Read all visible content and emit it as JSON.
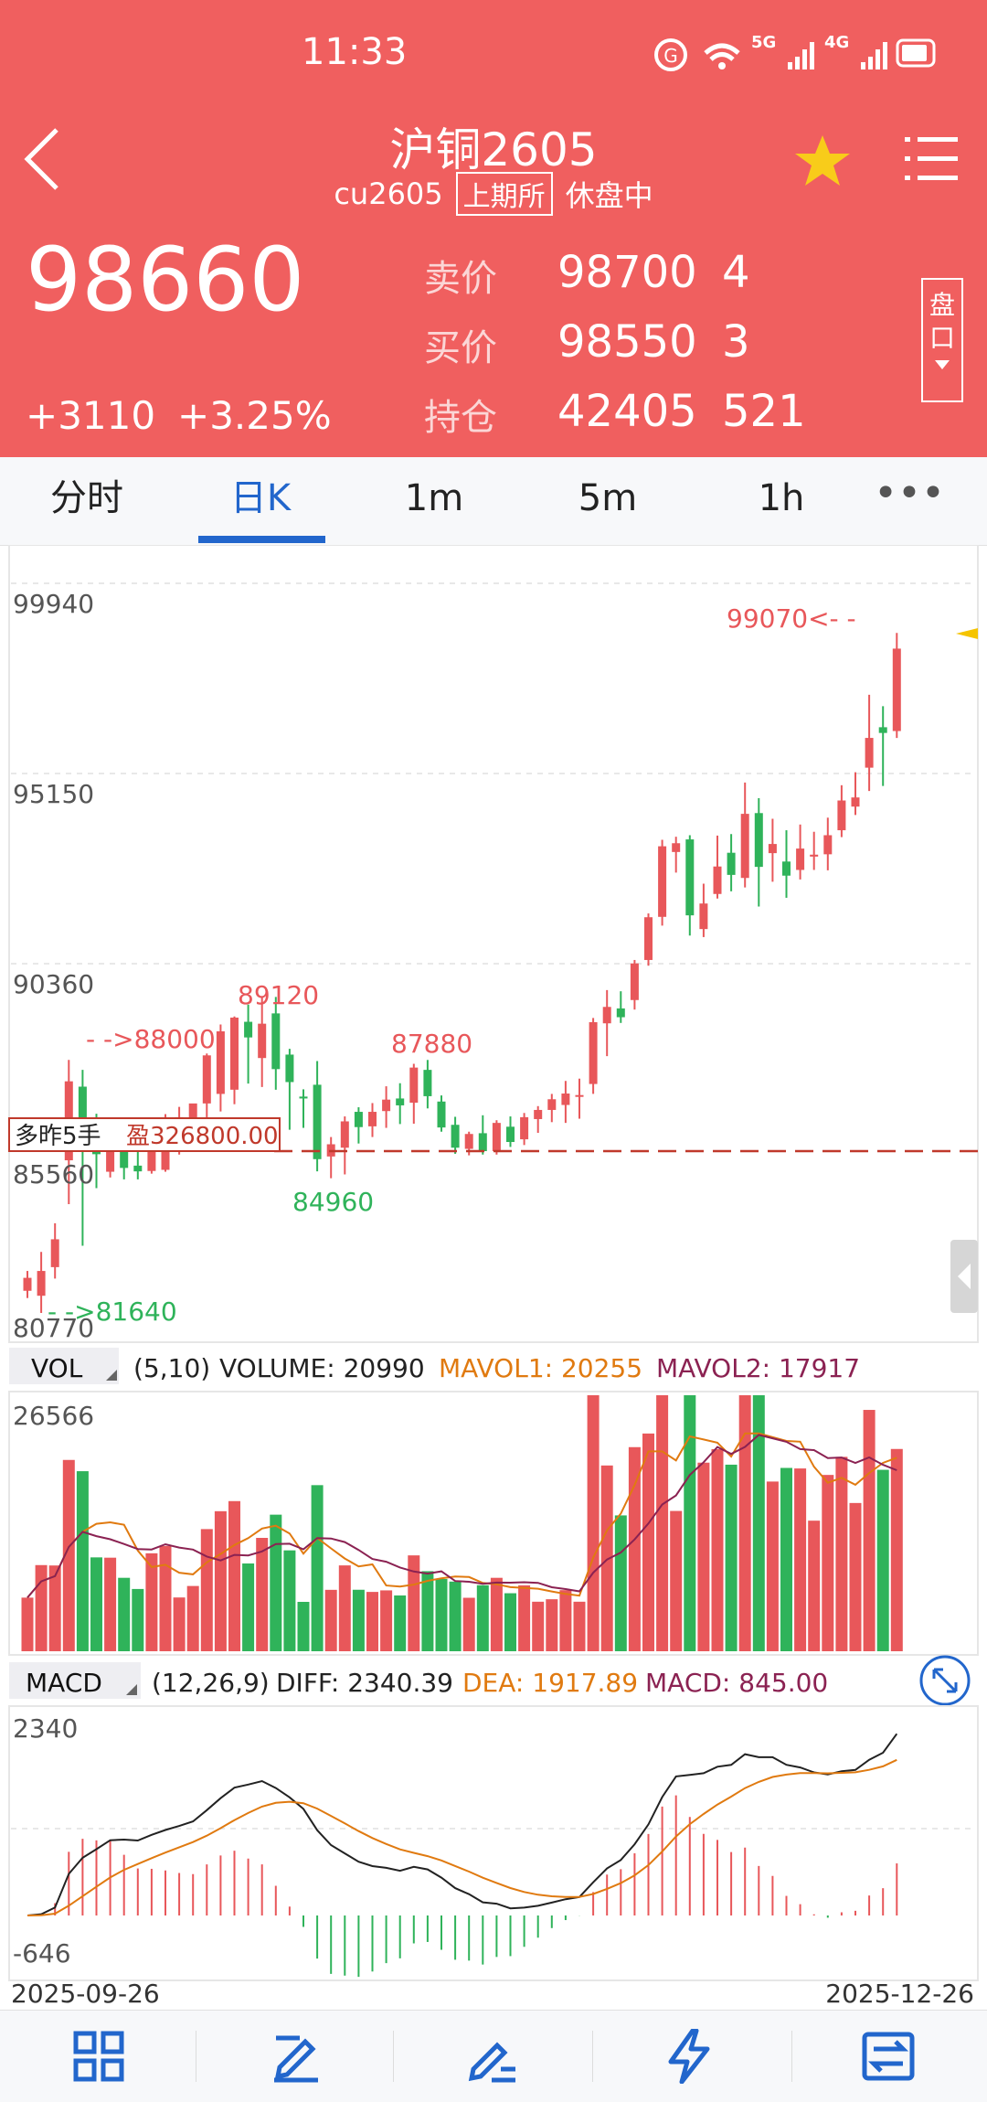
{
  "status_bar": {
    "time": "11:33",
    "net1": "5G",
    "net2": "4G"
  },
  "header": {
    "title": "沪铜2605",
    "code": "cu2605",
    "exchange": "上期所",
    "status": "休盘中",
    "price": "98660",
    "change": "+3110",
    "change_pct": "+3.25%",
    "quote_rows": [
      {
        "label": "卖价",
        "value": "98700",
        "qty": "4"
      },
      {
        "label": "买价",
        "value": "98550",
        "qty": "3"
      },
      {
        "label": "持仓",
        "value": "42405",
        "qty": "521"
      }
    ],
    "panel_button": "盘口"
  },
  "tabs": [
    "分时",
    "日K",
    "1m",
    "5m",
    "1h"
  ],
  "active_tab": 1,
  "main_chart": {
    "y_ticks": [
      "99940",
      "95150",
      "90360",
      "85560",
      "80770"
    ],
    "annotations": {
      "high_label": "99070<- -",
      "marker_88000": "- ->88000",
      "label_89120": "89120",
      "label_87880": "87880",
      "label_84960": "84960",
      "low_label": "- ->81640"
    },
    "position_tag": {
      "side": "多昨5手",
      "profit": "盈326800.00"
    }
  },
  "volume_panel": {
    "label": "VOL",
    "params": "(5,10)",
    "volume": "VOLUME: 20990",
    "mavol1": "MAVOL1: 20255",
    "mavol2": "MAVOL2: 17917",
    "y_max": "26566"
  },
  "macd_panel": {
    "label": "MACD",
    "params": "(12,26,9)",
    "diff": "DIFF: 2340.39",
    "dea": "DEA: 1917.89",
    "macd": "MACD: 845.00",
    "y_top": "2340",
    "y_bottom": "-646"
  },
  "dates": {
    "start": "2025-09-26",
    "end": "2025-12-26"
  },
  "colors": {
    "up": "#e8575a",
    "down": "#2fb35a",
    "header": "#f05f5f",
    "accent": "#2266cc",
    "orange": "#e07a10",
    "purple": "#8b2252"
  },
  "chart_data": {
    "type": "candlestick",
    "x_range": [
      "2025-09-26",
      "2025-12-26"
    ],
    "ylim": [
      80770,
      99940
    ],
    "candles": [
      {
        "o": 81830,
        "h": 82350,
        "l": 81640,
        "c": 82170
      },
      {
        "o": 81700,
        "h": 82850,
        "l": 81250,
        "c": 82350
      },
      {
        "o": 82450,
        "h": 83600,
        "l": 82150,
        "c": 83180
      },
      {
        "o": 85250,
        "h": 87880,
        "l": 84100,
        "c": 87320
      },
      {
        "o": 87180,
        "h": 87620,
        "l": 83010,
        "c": 85900
      },
      {
        "o": 86050,
        "h": 86470,
        "l": 84520,
        "c": 85410
      },
      {
        "o": 84950,
        "h": 86320,
        "l": 84800,
        "c": 85840
      },
      {
        "o": 85610,
        "h": 85950,
        "l": 84750,
        "c": 85050
      },
      {
        "o": 85110,
        "h": 86150,
        "l": 84750,
        "c": 84960
      },
      {
        "o": 84970,
        "h": 86360,
        "l": 84900,
        "c": 86010
      },
      {
        "o": 85000,
        "h": 86460,
        "l": 84950,
        "c": 86200
      },
      {
        "o": 86360,
        "h": 86650,
        "l": 85400,
        "c": 86380
      },
      {
        "o": 86110,
        "h": 86630,
        "l": 85900,
        "c": 86740
      },
      {
        "o": 86740,
        "h": 88050,
        "l": 85910,
        "c": 88000
      },
      {
        "o": 86990,
        "h": 88810,
        "l": 86530,
        "c": 88630
      },
      {
        "o": 87100,
        "h": 89020,
        "l": 86720,
        "c": 88990
      },
      {
        "o": 88880,
        "h": 89330,
        "l": 87260,
        "c": 88470
      },
      {
        "o": 87930,
        "h": 89530,
        "l": 87170,
        "c": 88830
      },
      {
        "o": 89100,
        "h": 89530,
        "l": 87100,
        "c": 87640
      },
      {
        "o": 88020,
        "h": 88170,
        "l": 86050,
        "c": 87300
      },
      {
        "o": 86920,
        "h": 87110,
        "l": 86100,
        "c": 86870
      },
      {
        "o": 87230,
        "h": 87850,
        "l": 84960,
        "c": 85280
      },
      {
        "o": 85350,
        "h": 85860,
        "l": 84780,
        "c": 85670
      },
      {
        "o": 85580,
        "h": 86400,
        "l": 84880,
        "c": 86270
      },
      {
        "o": 86520,
        "h": 86640,
        "l": 85690,
        "c": 86120
      },
      {
        "o": 86140,
        "h": 86750,
        "l": 85860,
        "c": 86520
      },
      {
        "o": 86540,
        "h": 87190,
        "l": 86100,
        "c": 86840
      },
      {
        "o": 86870,
        "h": 87270,
        "l": 86200,
        "c": 86690
      },
      {
        "o": 86760,
        "h": 87780,
        "l": 86210,
        "c": 87680
      },
      {
        "o": 87620,
        "h": 87880,
        "l": 86610,
        "c": 86930
      },
      {
        "o": 86790,
        "h": 86950,
        "l": 86000,
        "c": 86110
      },
      {
        "o": 86180,
        "h": 86390,
        "l": 85420,
        "c": 85580
      },
      {
        "o": 85550,
        "h": 86000,
        "l": 85380,
        "c": 85940
      },
      {
        "o": 85960,
        "h": 86430,
        "l": 85400,
        "c": 85490
      },
      {
        "o": 85490,
        "h": 86300,
        "l": 85400,
        "c": 86230
      },
      {
        "o": 86130,
        "h": 86400,
        "l": 85600,
        "c": 85730
      },
      {
        "o": 85800,
        "h": 86490,
        "l": 85650,
        "c": 86380
      },
      {
        "o": 86330,
        "h": 86670,
        "l": 85970,
        "c": 86570
      },
      {
        "o": 86570,
        "h": 86990,
        "l": 86250,
        "c": 86850
      },
      {
        "o": 86700,
        "h": 87330,
        "l": 86230,
        "c": 87000
      },
      {
        "o": 86930,
        "h": 87390,
        "l": 86340,
        "c": 86960
      },
      {
        "o": 87250,
        "h": 88980,
        "l": 86990,
        "c": 88870
      },
      {
        "o": 88840,
        "h": 89710,
        "l": 87980,
        "c": 89270
      },
      {
        "o": 89230,
        "h": 89680,
        "l": 88850,
        "c": 89000
      },
      {
        "o": 89450,
        "h": 90500,
        "l": 89200,
        "c": 90410
      },
      {
        "o": 90500,
        "h": 91720,
        "l": 90350,
        "c": 91620
      },
      {
        "o": 91630,
        "h": 93650,
        "l": 91400,
        "c": 93480
      },
      {
        "o": 93330,
        "h": 93730,
        "l": 92790,
        "c": 93560
      },
      {
        "o": 93660,
        "h": 93770,
        "l": 91140,
        "c": 91670
      },
      {
        "o": 91310,
        "h": 92500,
        "l": 91100,
        "c": 91980
      },
      {
        "o": 92230,
        "h": 93760,
        "l": 92110,
        "c": 92950
      },
      {
        "o": 93310,
        "h": 93800,
        "l": 92300,
        "c": 92730
      },
      {
        "o": 92650,
        "h": 95150,
        "l": 92400,
        "c": 94330
      },
      {
        "o": 94350,
        "h": 94740,
        "l": 91900,
        "c": 92940
      },
      {
        "o": 93300,
        "h": 94200,
        "l": 92550,
        "c": 93540
      },
      {
        "o": 93080,
        "h": 93900,
        "l": 92130,
        "c": 92710
      },
      {
        "o": 92860,
        "h": 94050,
        "l": 92610,
        "c": 93420
      },
      {
        "o": 93210,
        "h": 93860,
        "l": 92860,
        "c": 93260
      },
      {
        "o": 93270,
        "h": 94230,
        "l": 92850,
        "c": 93770
      },
      {
        "o": 93900,
        "h": 95080,
        "l": 93720,
        "c": 94680
      },
      {
        "o": 94520,
        "h": 95420,
        "l": 94300,
        "c": 94760
      },
      {
        "o": 95540,
        "h": 97450,
        "l": 94930,
        "c": 96320
      },
      {
        "o": 96600,
        "h": 97150,
        "l": 95060,
        "c": 96450
      },
      {
        "o": 96500,
        "h": 99070,
        "l": 96320,
        "c": 98660
      }
    ]
  }
}
